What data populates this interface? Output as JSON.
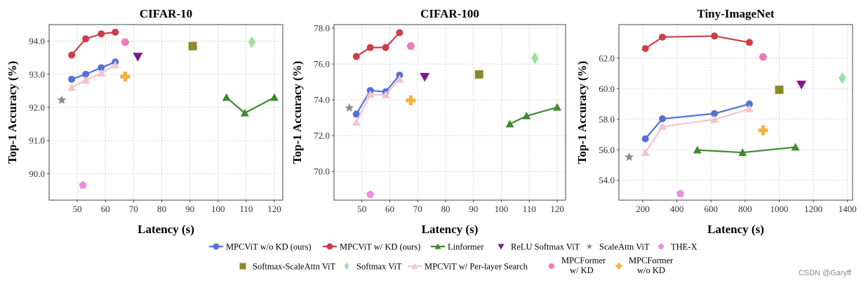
{
  "chart_data": [
    {
      "type": "scatter",
      "title": "CIFAR-10",
      "xlabel": "Latency (s)",
      "ylabel": "Top-1 Accuracy (%)",
      "xlim": [
        40,
        123
      ],
      "ylim": [
        89.2,
        94.5
      ],
      "xticks": [
        50,
        60,
        70,
        80,
        90,
        100,
        110,
        120
      ],
      "yticks": [
        90.0,
        91.0,
        92.0,
        93.0,
        94.0
      ],
      "series": [
        {
          "key": "wo_kd",
          "x": [
            48,
            53,
            58.5,
            63.5
          ],
          "y": [
            92.85,
            93.0,
            93.2,
            93.37
          ]
        },
        {
          "key": "w_kd",
          "x": [
            48,
            53,
            58.5,
            63.5
          ],
          "y": [
            93.58,
            94.07,
            94.22,
            94.27
          ]
        },
        {
          "key": "linformer",
          "x": [
            103,
            109.5,
            120
          ],
          "y": [
            92.3,
            91.83,
            92.3
          ]
        },
        {
          "key": "relu",
          "x": [
            71.5
          ],
          "y": [
            93.53
          ]
        },
        {
          "key": "scaleattn",
          "x": [
            44.5
          ],
          "y": [
            92.22
          ]
        },
        {
          "key": "thex",
          "x": [
            52
          ],
          "y": [
            89.65
          ]
        },
        {
          "key": "softmax_scaleattn",
          "x": [
            91
          ],
          "y": [
            93.85
          ]
        },
        {
          "key": "softmax",
          "x": [
            112
          ],
          "y": [
            93.97
          ]
        },
        {
          "key": "perlayer",
          "x": [
            48,
            53,
            58.5,
            63.5
          ],
          "y": [
            92.6,
            92.82,
            93.03,
            93.28
          ]
        },
        {
          "key": "mpcformer_kd",
          "x": [
            67
          ],
          "y": [
            93.97
          ]
        },
        {
          "key": "mpcformer_wo",
          "x": [
            67
          ],
          "y": [
            92.93
          ]
        }
      ]
    },
    {
      "type": "scatter",
      "title": "CIFAR-100",
      "xlabel": "Latency (s)",
      "ylabel": "Top-1 Accuracy (%)",
      "xlim": [
        40,
        123
      ],
      "ylim": [
        68.4,
        78.2
      ],
      "xticks": [
        50,
        60,
        70,
        80,
        90,
        100,
        110,
        120
      ],
      "yticks": [
        70.0,
        72.0,
        74.0,
        76.0,
        78.0
      ],
      "series": [
        {
          "key": "wo_kd",
          "x": [
            48,
            53,
            58.5,
            63.5
          ],
          "y": [
            73.2,
            74.52,
            74.45,
            75.38
          ]
        },
        {
          "key": "w_kd",
          "x": [
            48,
            53,
            58.5,
            63.5
          ],
          "y": [
            76.42,
            76.92,
            76.92,
            77.75
          ]
        },
        {
          "key": "linformer",
          "x": [
            103,
            109,
            120
          ],
          "y": [
            72.65,
            73.1,
            73.58
          ]
        },
        {
          "key": "relu",
          "x": [
            72.5
          ],
          "y": [
            75.28
          ]
        },
        {
          "key": "scaleattn",
          "x": [
            45.5
          ],
          "y": [
            73.55
          ]
        },
        {
          "key": "thex",
          "x": [
            53
          ],
          "y": [
            68.72
          ]
        },
        {
          "key": "softmax_scaleattn",
          "x": [
            92
          ],
          "y": [
            75.42
          ]
        },
        {
          "key": "softmax",
          "x": [
            112
          ],
          "y": [
            76.32
          ]
        },
        {
          "key": "perlayer",
          "x": [
            48,
            53,
            58.5,
            63.5
          ],
          "y": [
            72.75,
            74.3,
            74.28,
            75.15
          ]
        },
        {
          "key": "mpcformer_kd",
          "x": [
            67.5
          ],
          "y": [
            77.0
          ]
        },
        {
          "key": "mpcformer_wo",
          "x": [
            67.5
          ],
          "y": [
            73.97
          ]
        }
      ]
    },
    {
      "type": "scatter",
      "title": "Tiny-ImageNet",
      "xlabel": "Latency (s)",
      "ylabel": "Top-1 Accuracy (%)",
      "xlim": [
        60,
        1430
      ],
      "ylim": [
        52.7,
        64.2
      ],
      "xticks": [
        200,
        400,
        600,
        800,
        1000,
        1200,
        1400
      ],
      "yticks": [
        54.0,
        56.0,
        58.0,
        60.0,
        62.0
      ],
      "series": [
        {
          "key": "wo_kd",
          "x": [
            215,
            315,
            620,
            825
          ],
          "y": [
            56.72,
            58.03,
            58.37,
            59.0
          ]
        },
        {
          "key": "w_kd",
          "x": [
            215,
            315,
            620,
            825
          ],
          "y": [
            62.63,
            63.38,
            63.45,
            63.03
          ]
        },
        {
          "key": "linformer",
          "x": [
            520,
            785,
            1095
          ],
          "y": [
            55.98,
            55.82,
            56.17
          ]
        },
        {
          "key": "relu",
          "x": [
            1130
          ],
          "y": [
            60.27
          ]
        },
        {
          "key": "scaleattn",
          "x": [
            120
          ],
          "y": [
            55.52
          ]
        },
        {
          "key": "thex",
          "x": [
            420
          ],
          "y": [
            53.12
          ]
        },
        {
          "key": "softmax_scaleattn",
          "x": [
            1000
          ],
          "y": [
            59.93
          ]
        },
        {
          "key": "softmax",
          "x": [
            1370
          ],
          "y": [
            60.7
          ]
        },
        {
          "key": "perlayer",
          "x": [
            215,
            315,
            620,
            825
          ],
          "y": [
            55.82,
            57.52,
            57.98,
            58.68
          ]
        },
        {
          "key": "mpcformer_kd",
          "x": [
            905
          ],
          "y": [
            62.08
          ]
        },
        {
          "key": "mpcformer_wo",
          "x": [
            905
          ],
          "y": [
            57.27
          ]
        }
      ]
    }
  ],
  "legend": [
    {
      "key": "wo_kd",
      "label": "MPCViT w/o KD (ours)",
      "color": "#5470d6",
      "marker": "circle",
      "line": true
    },
    {
      "key": "w_kd",
      "label": "MPCViT w/ KD (ours)",
      "color": "#cc3c4a",
      "marker": "circle",
      "line": true
    },
    {
      "key": "linformer",
      "label": "Linformer",
      "color": "#3f8a2f",
      "marker": "triangle-up",
      "line": true
    },
    {
      "key": "relu",
      "label": "ReLU Softmax ViT",
      "color": "#7d1a8a",
      "marker": "triangle-down",
      "line": false
    },
    {
      "key": "scaleattn",
      "label": "ScaleAttn ViT",
      "color": "#8c8c8c",
      "marker": "star",
      "line": false
    },
    {
      "key": "thex",
      "label": "THE-X",
      "color": "#ea8ee4",
      "marker": "pentagon",
      "line": false
    },
    {
      "key": "softmax_scaleattn",
      "label": "Softmax-ScaleAttn ViT",
      "color": "#8a8a2a",
      "marker": "square",
      "line": false
    },
    {
      "key": "softmax",
      "label": "Softmax ViT",
      "color": "#9ae0a0",
      "marker": "diamond",
      "line": false
    },
    {
      "key": "perlayer",
      "label": "MPCViT w/ Per-layer Search",
      "color": "#f2c4cc",
      "marker": "triangle-up",
      "line": true
    },
    {
      "key": "mpcformer_kd",
      "label_lines": [
        "MPCFormer",
        "w/ KD"
      ],
      "color": "#ee7ab8",
      "marker": "hexagon",
      "line": false
    },
    {
      "key": "mpcformer_wo",
      "label_lines": [
        "MPCFormer",
        "w/o KD"
      ],
      "color": "#f2b341",
      "marker": "plus",
      "line": false
    }
  ],
  "watermark": "CSDN @Garyff"
}
